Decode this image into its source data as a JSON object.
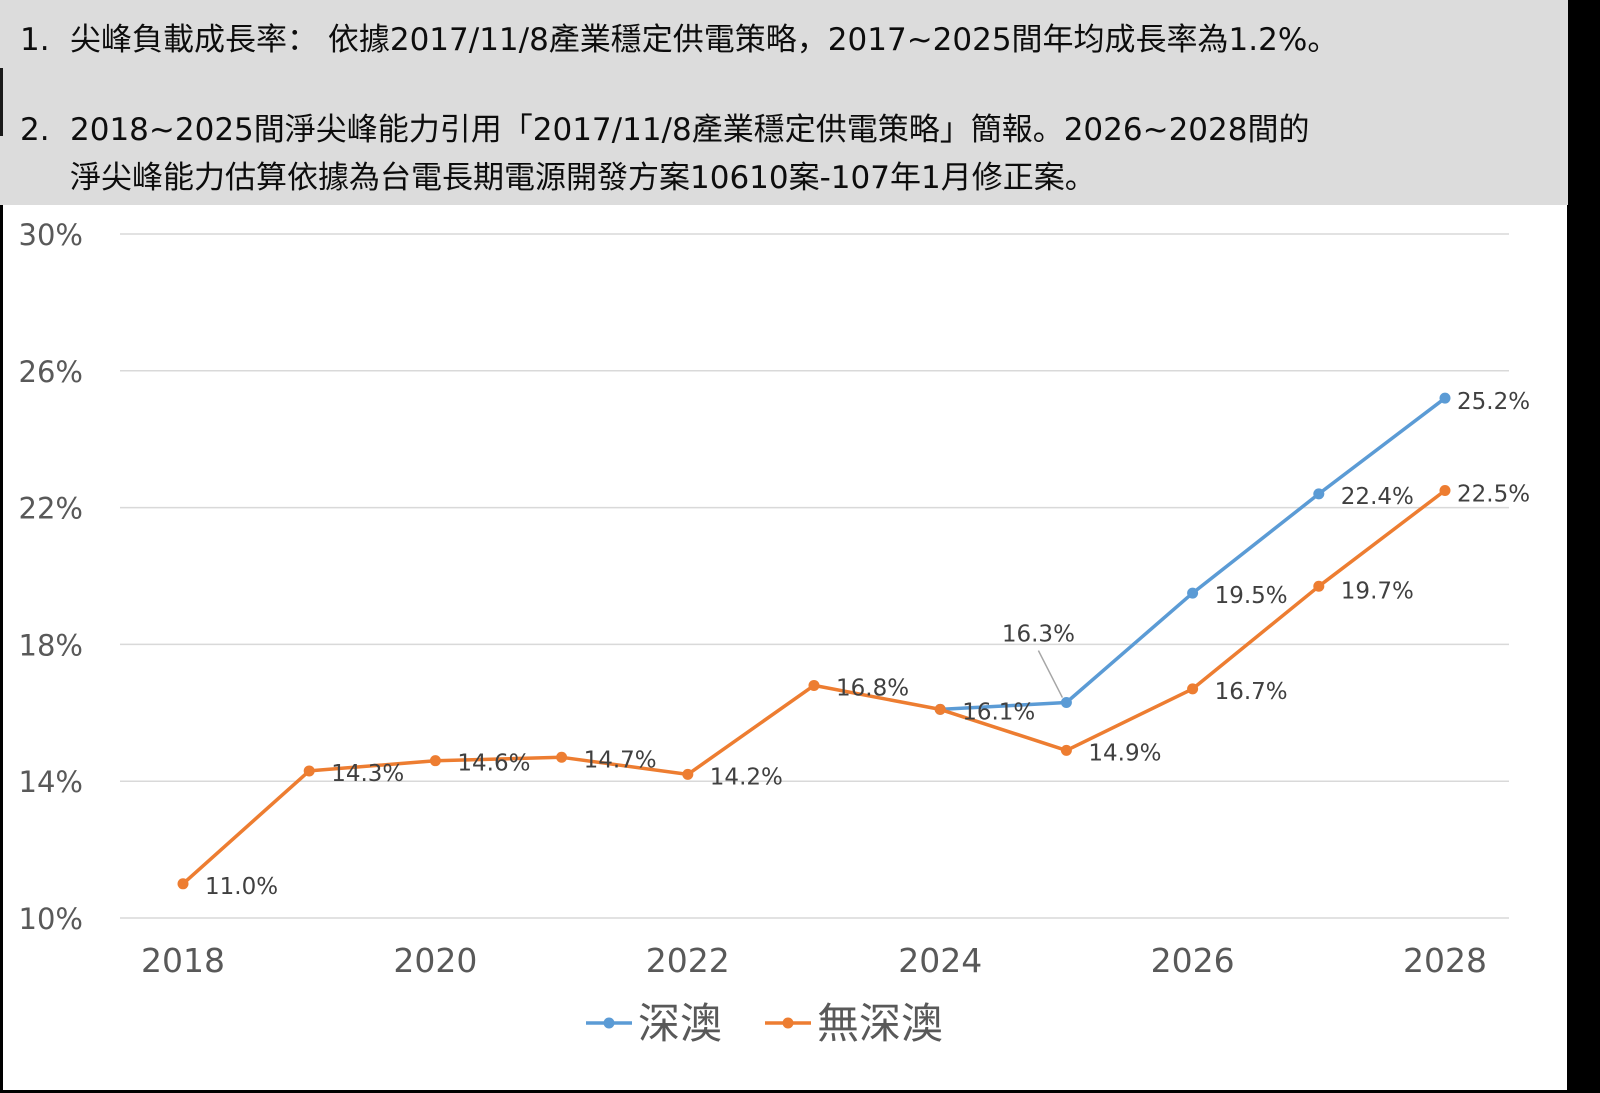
{
  "notes": {
    "line1_num": "1.",
    "line1": "尖峰負載成長率： 依據2017/11/8產業穩定供電策略，2017~2025間年均成長率為1.2%。",
    "line2_num": "2.",
    "line2a": "2018~2025間淨尖峰能力引用「2017/11/8產業穩定供電策略」簡報。2026~2028間的",
    "line2b": "淨尖峰能力估算依據為台電長期電源開發方案10610案-107年1月修正案。"
  },
  "colors": {
    "series_blue": "#5b9bd5",
    "series_orange": "#ed7d31",
    "grid": "#d9d9d9",
    "axis_text": "#595959",
    "label_text": "#404040"
  },
  "chart_data": {
    "type": "line",
    "title": "",
    "xlabel": "",
    "ylabel": "",
    "x": [
      2018,
      2019,
      2020,
      2021,
      2022,
      2023,
      2024,
      2025,
      2026,
      2027,
      2028
    ],
    "x_tick_labels": [
      "2018",
      "2020",
      "2022",
      "2024",
      "2026",
      "2028"
    ],
    "y_tick_labels": [
      "30%",
      "26%",
      "22%",
      "18%",
      "14%",
      "10%"
    ],
    "ylim": [
      10,
      30
    ],
    "grid": true,
    "legend_position": "bottom",
    "series": [
      {
        "name": "深澳",
        "color": "#5b9bd5",
        "x": [
          2024,
          2025,
          2026,
          2027,
          2028
        ],
        "values": [
          16.1,
          16.3,
          19.5,
          22.4,
          25.2
        ],
        "labels": [
          null,
          "16.3%",
          "19.5%",
          "22.4%",
          "25.2%"
        ]
      },
      {
        "name": "無深澳",
        "color": "#ed7d31",
        "x": [
          2018,
          2019,
          2020,
          2021,
          2022,
          2023,
          2024,
          2025,
          2026,
          2027,
          2028
        ],
        "values": [
          11.0,
          14.3,
          14.6,
          14.7,
          14.2,
          16.8,
          16.1,
          14.9,
          16.7,
          19.7,
          22.5
        ],
        "labels": [
          "11.0%",
          "14.3%",
          "14.6%",
          "14.7%",
          "14.2%",
          "16.8%",
          "16.1%",
          "14.9%",
          "16.7%",
          "19.7%",
          "22.5%"
        ]
      }
    ]
  }
}
